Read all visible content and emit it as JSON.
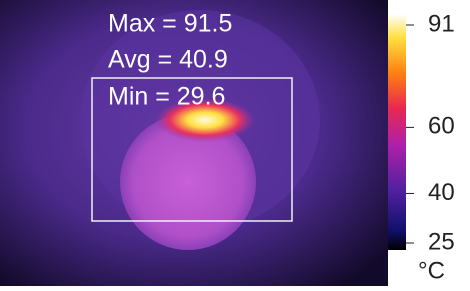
{
  "overlay": {
    "max": "Max = 91.5",
    "avg": "Avg = 40.9",
    "min": "Min = 29.6"
  },
  "colorbar": {
    "lim": [
      25,
      91
    ],
    "ticks": [
      91,
      60,
      40,
      25
    ],
    "unit": "°C"
  }
}
